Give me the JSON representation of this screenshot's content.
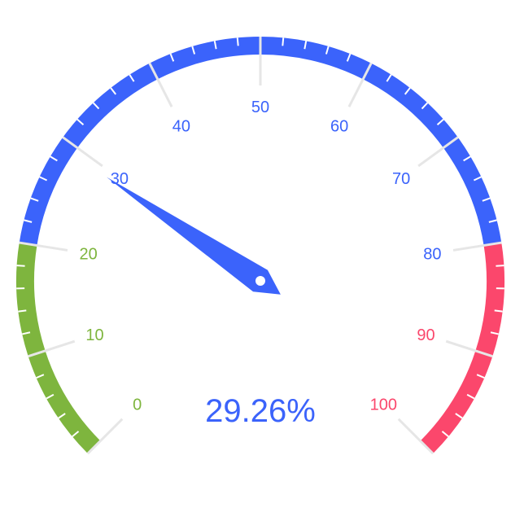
{
  "chart_data": {
    "type": "gauge",
    "title": "",
    "min": 0,
    "max": 100,
    "value": 29.26,
    "detail_text": "29.26%",
    "tick_labels": [
      "0",
      "10",
      "20",
      "30",
      "40",
      "50",
      "60",
      "70",
      "80",
      "90",
      "100"
    ],
    "bands": [
      {
        "from": 0,
        "to": 20,
        "color": "#7eb53e"
      },
      {
        "from": 20,
        "to": 80,
        "color": "#3b63fb"
      },
      {
        "from": 80,
        "to": 100,
        "color": "#fb476c"
      }
    ],
    "pointer_color": "#3b63fb",
    "detail_color": "#3b63fb"
  }
}
